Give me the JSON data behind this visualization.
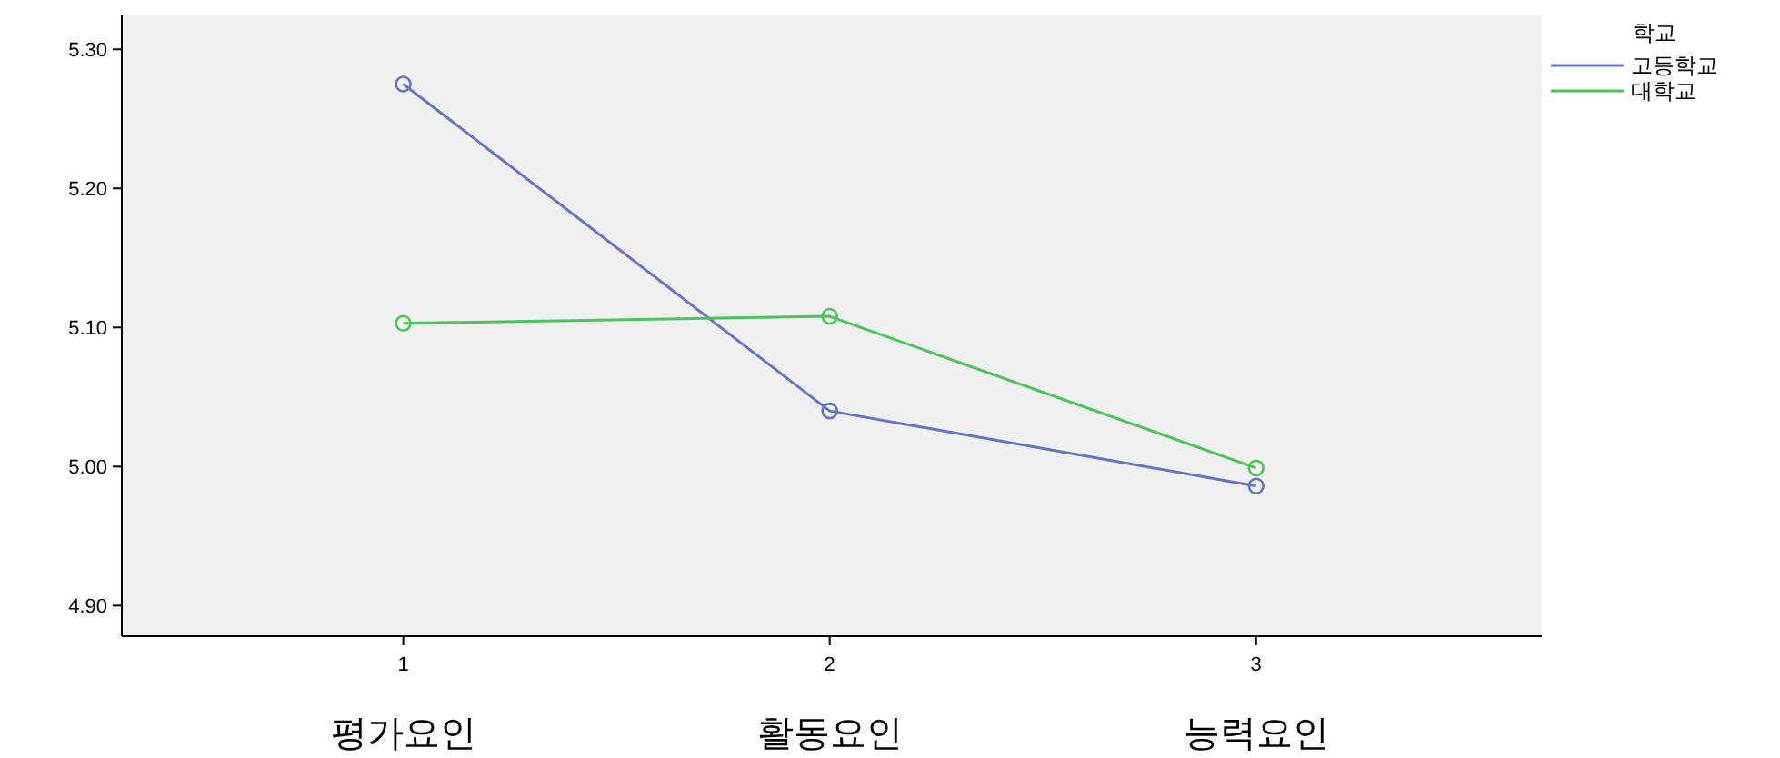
{
  "chart_data": {
    "type": "line",
    "x": [
      1,
      2,
      3
    ],
    "xlim": [
      0.34,
      3.67
    ],
    "xticks": [
      1,
      2,
      3
    ],
    "ylim": [
      4.878,
      5.325
    ],
    "yticks": [
      {
        "value": 4.9,
        "label": "4.90"
      },
      {
        "value": 5.0,
        "label": "5.00"
      },
      {
        "value": 5.1,
        "label": "5.10"
      },
      {
        "value": 5.2,
        "label": "5.20"
      },
      {
        "value": 5.3,
        "label": "5.30"
      }
    ],
    "legend_title": "학교",
    "legend": "top right",
    "marker": "circle",
    "grid": false,
    "series": [
      {
        "name": "고등학교",
        "color": "#6674c4",
        "values": [
          5.275,
          5.04,
          4.986
        ]
      },
      {
        "name": "대학교",
        "color": "#4cc45a",
        "values": [
          5.103,
          5.108,
          4.999
        ]
      }
    ],
    "annotations": [
      "평가요인",
      "활동요인",
      "능력요인"
    ]
  }
}
